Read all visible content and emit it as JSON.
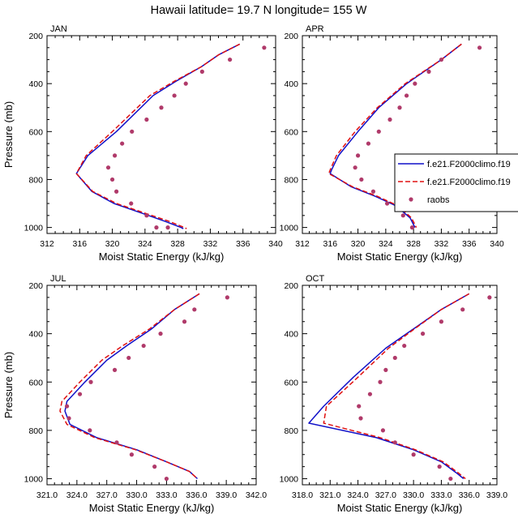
{
  "figure_title": "Hawaii  latitude= 19.7 N longitude= 155 W",
  "legend": {
    "entries": [
      {
        "label": "f.e21.F2000climo.f19",
        "style": "solid",
        "color": "#1010c8"
      },
      {
        "label": "f.e21.F2000climo.f19",
        "style": "dashed",
        "color": "#e01010"
      },
      {
        "label": "raobs",
        "style": "marker",
        "color": "#b03a6a"
      }
    ]
  },
  "chart_data": [
    {
      "type": "line",
      "title": "JAN",
      "xlabel": "Moist Static Energy (kJ/kg)",
      "ylabel": "Pressure (mb)",
      "xlim": [
        312,
        340
      ],
      "xticks": [
        312,
        316,
        320,
        324,
        328,
        332,
        336,
        340
      ],
      "xticklabels": [
        "312",
        "316",
        "320",
        "324",
        "328",
        "332",
        "336",
        "340"
      ],
      "ylim": [
        200,
        1025
      ],
      "yticks": [
        200,
        400,
        600,
        800,
        1000
      ],
      "yticklabels": [
        "200",
        "400",
        "600",
        "800",
        "1000"
      ],
      "series": [
        {
          "name": "f.e21.F2000climo.f19",
          "style": "solid",
          "color": "#1010c8",
          "x": [
            335.6,
            333.0,
            330.9,
            327.8,
            325.0,
            320.5,
            317.0,
            315.6,
            317.5,
            320.2,
            324.0,
            326.5,
            328.4,
            328.7
          ],
          "y": [
            235,
            280,
            330,
            390,
            450,
            600,
            700,
            775,
            850,
            900,
            945,
            975,
            1000,
            1005
          ]
        },
        {
          "name": "f.e21.F2000climo.f19",
          "style": "dashed",
          "color": "#e01010",
          "x": [
            335.6,
            333.0,
            330.9,
            327.6,
            324.6,
            320.0,
            316.8,
            315.6,
            317.6,
            320.5,
            324.4,
            327.0,
            328.8,
            329.1
          ],
          "y": [
            235,
            280,
            330,
            390,
            450,
            600,
            700,
            775,
            850,
            900,
            945,
            975,
            1000,
            1005
          ]
        },
        {
          "name": "raobs",
          "style": "marker",
          "color": "#b03a6a",
          "x": [
            338.6,
            334.4,
            331.0,
            329.0,
            327.6,
            326.0,
            324.2,
            322.4,
            321.2,
            320.3,
            319.5,
            320.0,
            320.5,
            322.3,
            324.2,
            325.4,
            326.8
          ],
          "y": [
            250,
            300,
            350,
            400,
            450,
            500,
            550,
            600,
            650,
            700,
            750,
            800,
            850,
            900,
            950,
            1000,
            1000
          ]
        }
      ]
    },
    {
      "type": "line",
      "title": "APR",
      "xlabel": "Moist Static Energy (kJ/kg)",
      "ylabel": "",
      "xlim": [
        312,
        340
      ],
      "xticks": [
        312,
        316,
        320,
        324,
        328,
        332,
        336,
        340
      ],
      "xticklabels": [
        "312",
        "316",
        "320",
        "324",
        "328",
        "332",
        "336",
        "340"
      ],
      "ylim": [
        200,
        1025
      ],
      "yticks": [
        200,
        400,
        600,
        800,
        1000
      ],
      "yticklabels": [
        "200",
        "400",
        "600",
        "800",
        "1000"
      ],
      "series": [
        {
          "name": "f.e21.F2000climo.f19",
          "style": "solid",
          "color": "#1010c8",
          "x": [
            334.9,
            332.0,
            327.0,
            323.0,
            320.0,
            317.2,
            316.2,
            316.0,
            319.0,
            322.5,
            325.5,
            327.5,
            328.2
          ],
          "y": [
            235,
            300,
            400,
            500,
            600,
            700,
            760,
            775,
            830,
            870,
            910,
            960,
            1000
          ]
        },
        {
          "name": "f.e21.F2000climo.f19",
          "style": "dashed",
          "color": "#e01010",
          "x": [
            334.9,
            332.0,
            326.8,
            322.8,
            319.6,
            316.9,
            316.0,
            315.8,
            319.2,
            322.8,
            325.8,
            327.7,
            328.4
          ],
          "y": [
            235,
            300,
            400,
            500,
            600,
            700,
            760,
            775,
            830,
            870,
            910,
            960,
            1000
          ]
        },
        {
          "name": "raobs",
          "style": "marker",
          "color": "#b03a6a",
          "x": [
            337.5,
            332.0,
            330.2,
            328.2,
            327.0,
            326.0,
            324.6,
            323.0,
            321.5,
            320.0,
            319.6,
            320.5,
            322.2,
            324.2,
            326.5,
            327.8
          ],
          "y": [
            250,
            300,
            350,
            400,
            450,
            500,
            550,
            600,
            650,
            700,
            750,
            800,
            850,
            900,
            950,
            1000
          ]
        }
      ]
    },
    {
      "type": "line",
      "title": "JUL",
      "xlabel": "Moist Static Energy (kJ/kg)",
      "ylabel": "Pressure (mb)",
      "xlim": [
        321,
        342
      ],
      "xticks": [
        321,
        324,
        327,
        330,
        333,
        336,
        339,
        342
      ],
      "xticklabels": [
        "321.0",
        "324.0",
        "327.0",
        "330.0",
        "333.0",
        "336.0",
        "339.0",
        "342.0"
      ],
      "ylim": [
        200,
        1025
      ],
      "yticks": [
        200,
        400,
        600,
        800,
        1000
      ],
      "yticklabels": [
        "200",
        "400",
        "600",
        "800",
        "1000"
      ],
      "series": [
        {
          "name": "f.e21.F2000climo.f19",
          "style": "solid",
          "color": "#1010c8",
          "x": [
            336.3,
            333.8,
            331.5,
            329.0,
            327.0,
            324.8,
            323.0,
            322.8,
            323.3,
            326.0,
            330.0,
            333.0,
            335.3,
            336.1
          ],
          "y": [
            235,
            300,
            380,
            450,
            510,
            600,
            680,
            720,
            775,
            830,
            880,
            930,
            970,
            1000
          ]
        },
        {
          "name": "f.e21.F2000climo.f19",
          "style": "dashed",
          "color": "#e01010",
          "x": [
            336.3,
            333.8,
            331.3,
            328.6,
            326.5,
            324.3,
            322.5,
            322.3,
            323.0,
            325.8,
            329.9,
            333.0,
            335.3,
            336.1
          ],
          "y": [
            235,
            300,
            380,
            450,
            510,
            600,
            680,
            720,
            775,
            830,
            880,
            930,
            970,
            1000
          ]
        },
        {
          "name": "raobs",
          "style": "marker",
          "color": "#b03a6a",
          "x": [
            339.1,
            335.8,
            334.8,
            332.4,
            330.7,
            329.2,
            327.8,
            325.4,
            324.3,
            323.0,
            323.2,
            325.3,
            328.0,
            329.5,
            331.8,
            333.0
          ],
          "y": [
            250,
            300,
            350,
            400,
            450,
            500,
            550,
            600,
            650,
            700,
            750,
            800,
            850,
            900,
            950,
            1000
          ]
        }
      ]
    },
    {
      "type": "line",
      "title": "OCT",
      "xlabel": "Moist Static Energy (kJ/kg)",
      "ylabel": "",
      "xlim": [
        318,
        339
      ],
      "xticks": [
        318,
        321,
        324,
        327,
        330,
        333,
        336,
        339
      ],
      "xticklabels": [
        "318.0",
        "321.0",
        "324.0",
        "327.0",
        "330.0",
        "333.0",
        "336.0",
        "339.0"
      ],
      "ylim": [
        200,
        1025
      ],
      "yticks": [
        200,
        400,
        600,
        800,
        1000
      ],
      "yticklabels": [
        "200",
        "400",
        "600",
        "800",
        "1000"
      ],
      "series": [
        {
          "name": "f.e21.F2000climo.f19",
          "style": "solid",
          "color": "#1010c8",
          "x": [
            336.0,
            333.0,
            330.0,
            327.0,
            323.5,
            320.3,
            318.7,
            326.0,
            330.0,
            333.0,
            334.6,
            335.4
          ],
          "y": [
            235,
            300,
            380,
            460,
            580,
            700,
            770,
            830,
            880,
            930,
            975,
            1000
          ]
        },
        {
          "name": "f.e21.F2000climo.f19",
          "style": "dashed",
          "color": "#e01010",
          "x": [
            336.0,
            333.0,
            330.1,
            327.3,
            324.0,
            320.6,
            320.3,
            326.4,
            330.2,
            333.2,
            334.8,
            335.6
          ],
          "y": [
            235,
            300,
            380,
            460,
            580,
            700,
            770,
            830,
            880,
            930,
            975,
            1000
          ]
        },
        {
          "name": "raobs",
          "style": "marker",
          "color": "#b03a6a",
          "x": [
            338.2,
            335.3,
            333.0,
            331.0,
            329.0,
            328.0,
            327.0,
            326.4,
            325.3,
            324.1,
            324.3,
            326.7,
            328.0,
            330.0,
            332.8,
            334.0
          ],
          "y": [
            250,
            300,
            350,
            400,
            450,
            500,
            550,
            600,
            650,
            700,
            750,
            800,
            850,
            900,
            950,
            1000
          ]
        }
      ]
    }
  ]
}
